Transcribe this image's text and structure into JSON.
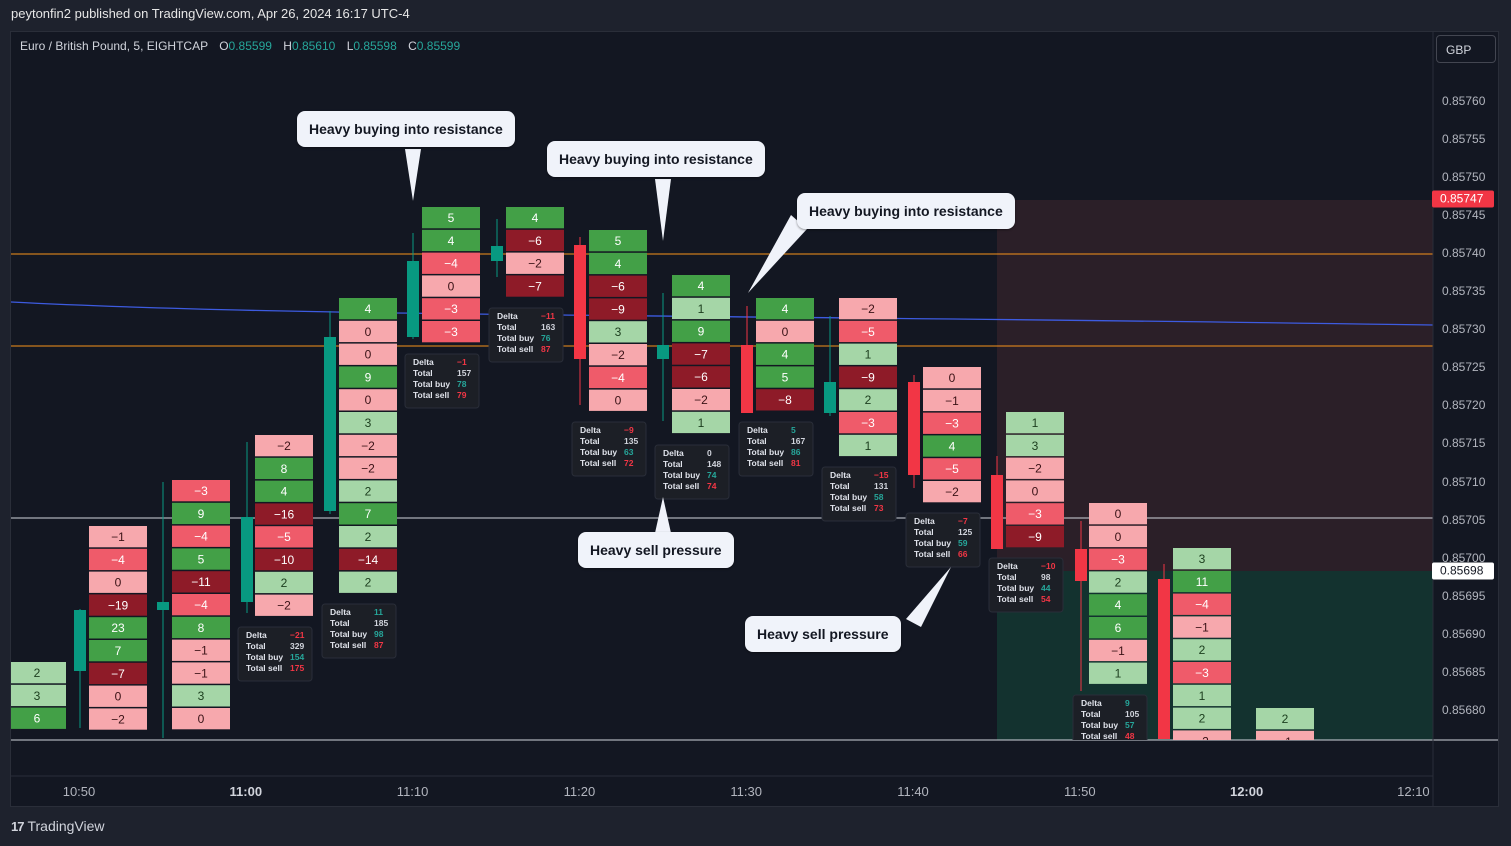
{
  "header": {
    "publisher_line": "peytonfin2 published on TradingView.com, Apr 26, 2024 16:17 UTC-4"
  },
  "symbol": {
    "name": "Euro / British Pound, 5, EIGHTCAP",
    "o_label": "O",
    "o": "0.85599",
    "h_label": "H",
    "h": "0.85610",
    "l_label": "L",
    "l": "0.85598",
    "c_label": "C",
    "c": "0.85599"
  },
  "currency_button": "GBP",
  "price_axis": {
    "ticks": [
      "0.85760",
      "0.85755",
      "0.85750",
      "0.85745",
      "0.85740",
      "0.85735",
      "0.85730",
      "0.85725",
      "0.85720",
      "0.85715",
      "0.85710",
      "0.85705",
      "0.85700",
      "0.85695",
      "0.85690",
      "0.85685",
      "0.85680"
    ],
    "badge_red": "0.85747",
    "badge_white": "0.85698"
  },
  "time_axis": {
    "ticks": [
      {
        "label": "10:50",
        "major": false
      },
      {
        "label": "11:00",
        "major": true
      },
      {
        "label": "11:10",
        "major": false
      },
      {
        "label": "11:20",
        "major": false
      },
      {
        "label": "11:30",
        "major": false
      },
      {
        "label": "11:40",
        "major": false
      },
      {
        "label": "11:50",
        "major": false
      },
      {
        "label": "12:00",
        "major": true
      },
      {
        "label": "12:10",
        "major": false
      }
    ]
  },
  "colors": {
    "up": "#089981",
    "down": "#f23645",
    "orange_line": "#f7931a",
    "ma_line": "#3d5be0"
  },
  "callouts": [
    {
      "text": "Heavy buying into resistance"
    },
    {
      "text": "Heavy buying into resistance"
    },
    {
      "text": "Heavy buying into resistance"
    },
    {
      "text": "Heavy sell pressure"
    },
    {
      "text": "Heavy sell pressure"
    }
  ],
  "footprint_columns": [
    {
      "cells": [
        2,
        3,
        6
      ]
    },
    {
      "cells": [
        -1,
        -4,
        0,
        -19,
        23,
        7,
        -7,
        0,
        -2
      ]
    },
    {
      "cells": [
        -3,
        9,
        -4,
        5,
        -11,
        -4,
        8,
        -1,
        -1,
        3,
        0
      ]
    },
    {
      "cells": [
        -2,
        8,
        4,
        -16,
        -5,
        -10,
        2,
        -2
      ]
    },
    {
      "cells": [
        4,
        0,
        0,
        9,
        0,
        3,
        -2,
        -2,
        2,
        7,
        2,
        -14,
        2
      ]
    },
    {
      "cells": [
        5,
        4,
        -4,
        0,
        -3,
        -3
      ]
    },
    {
      "cells": [
        4,
        -6,
        -2,
        -7
      ]
    },
    {
      "cells": [
        5,
        4,
        -6,
        -9,
        3,
        -2,
        -4,
        0
      ]
    },
    {
      "cells": [
        4,
        1,
        9,
        -7,
        -6,
        -2,
        1
      ]
    },
    {
      "cells": [
        4,
        0,
        4,
        5,
        -8
      ]
    },
    {
      "cells": [
        -2,
        -5,
        1,
        -9,
        2,
        -3,
        1
      ]
    },
    {
      "cells": [
        0,
        -1,
        -3,
        4,
        -5,
        -2
      ]
    },
    {
      "cells": [
        1,
        3,
        -2,
        0,
        -3,
        -9
      ]
    },
    {
      "cells": [
        0,
        0,
        -3,
        2,
        4,
        6,
        -1,
        1
      ]
    },
    {
      "cells": [
        3,
        11,
        -4,
        -1,
        2,
        -3,
        1,
        2,
        -2
      ]
    },
    {
      "cells": [
        2,
        -1
      ]
    }
  ],
  "stat_labels": {
    "delta": "Delta",
    "total": "Total",
    "buy": "Total buy",
    "sell": "Total sell"
  },
  "stat_boxes": [
    {
      "delta": "−21",
      "total": "329",
      "buy": "154",
      "sell": "175"
    },
    {
      "delta": "11",
      "total": "185",
      "buy": "98",
      "sell": "87"
    },
    {
      "delta": "−1",
      "total": "157",
      "buy": "78",
      "sell": "79"
    },
    {
      "delta": "−11",
      "total": "163",
      "buy": "76",
      "sell": "87"
    },
    {
      "delta": "−9",
      "total": "135",
      "buy": "63",
      "sell": "72"
    },
    {
      "delta": "0",
      "total": "148",
      "buy": "74",
      "sell": "74"
    },
    {
      "delta": "5",
      "total": "167",
      "buy": "86",
      "sell": "81"
    },
    {
      "delta": "−15",
      "total": "131",
      "buy": "58",
      "sell": "73"
    },
    {
      "delta": "−7",
      "total": "125",
      "buy": "59",
      "sell": "66"
    },
    {
      "delta": "−10",
      "total": "98",
      "buy": "44",
      "sell": "54"
    },
    {
      "delta": "9",
      "total": "105",
      "buy": "57",
      "sell": "48"
    }
  ],
  "footer": {
    "brand": "TradingView",
    "logo": "17"
  }
}
